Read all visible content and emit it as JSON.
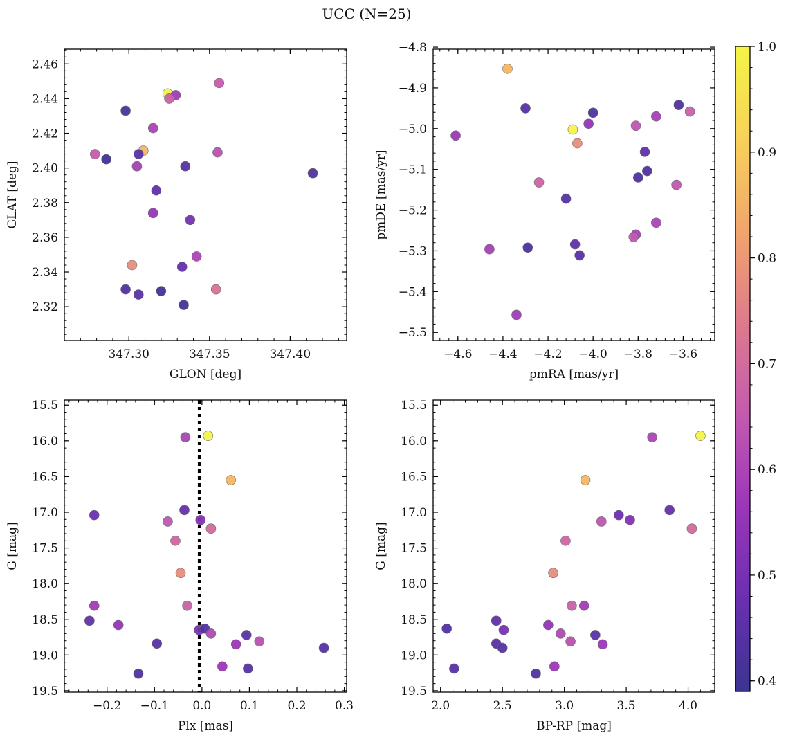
{
  "title": "UCC (N=25)",
  "colormap": {
    "name": "plasma",
    "range": [
      0.39,
      1.0
    ],
    "ticks": [
      0.4,
      0.5,
      0.6,
      0.7,
      0.8,
      0.9,
      1.0
    ],
    "tick_labels": [
      "0.4",
      "0.5",
      "0.6",
      "0.7",
      "0.8",
      "0.9",
      "1.0"
    ],
    "stops": [
      "#3a3491",
      "#6a2fb0",
      "#9a36b8",
      "#c35ab0",
      "#de7a8c",
      "#f1a56c",
      "#f7d25a",
      "#f4f446"
    ]
  },
  "chart_data": [
    {
      "type": "scatter",
      "name": "glon-glat",
      "xlabel": "GLON [deg]",
      "ylabel": "GLAT [deg]",
      "xlim": [
        347.26,
        347.435
      ],
      "ylim": [
        2.3005,
        2.4685
      ],
      "xticks": [
        347.3,
        347.35,
        347.4
      ],
      "xtick_labels": [
        "347.30",
        "347.35",
        "347.40"
      ],
      "yticks": [
        2.32,
        2.34,
        2.36,
        2.38,
        2.4,
        2.42,
        2.44,
        2.46
      ],
      "ytick_labels": [
        "2.32",
        "2.34",
        "2.36",
        "2.38",
        "2.40",
        "2.42",
        "2.44",
        "2.46"
      ],
      "points": [
        {
          "x": 347.324,
          "y": 2.443,
          "c": 1.0
        },
        {
          "x": 347.329,
          "y": 2.442,
          "c": 0.58
        },
        {
          "x": 347.325,
          "y": 2.44,
          "c": 0.67
        },
        {
          "x": 347.356,
          "y": 2.449,
          "c": 0.66
        },
        {
          "x": 347.298,
          "y": 2.433,
          "c": 0.42
        },
        {
          "x": 347.315,
          "y": 2.423,
          "c": 0.6
        },
        {
          "x": 347.309,
          "y": 2.41,
          "c": 0.86
        },
        {
          "x": 347.306,
          "y": 2.408,
          "c": 0.44
        },
        {
          "x": 347.279,
          "y": 2.408,
          "c": 0.66
        },
        {
          "x": 347.286,
          "y": 2.405,
          "c": 0.4
        },
        {
          "x": 347.355,
          "y": 2.409,
          "c": 0.63
        },
        {
          "x": 347.305,
          "y": 2.401,
          "c": 0.59
        },
        {
          "x": 347.335,
          "y": 2.401,
          "c": 0.44
        },
        {
          "x": 347.414,
          "y": 2.397,
          "c": 0.43
        },
        {
          "x": 347.317,
          "y": 2.387,
          "c": 0.46
        },
        {
          "x": 347.315,
          "y": 2.374,
          "c": 0.56
        },
        {
          "x": 347.338,
          "y": 2.37,
          "c": 0.5
        },
        {
          "x": 347.342,
          "y": 2.349,
          "c": 0.6
        },
        {
          "x": 347.302,
          "y": 2.344,
          "c": 0.78
        },
        {
          "x": 347.333,
          "y": 2.343,
          "c": 0.47
        },
        {
          "x": 347.298,
          "y": 2.33,
          "c": 0.43
        },
        {
          "x": 347.354,
          "y": 2.33,
          "c": 0.72
        },
        {
          "x": 347.306,
          "y": 2.327,
          "c": 0.45
        },
        {
          "x": 347.32,
          "y": 2.329,
          "c": 0.41
        },
        {
          "x": 347.334,
          "y": 2.321,
          "c": 0.41
        }
      ]
    },
    {
      "type": "scatter",
      "name": "pmra-pmde",
      "xlabel": "pmRA [mas/yr]",
      "ylabel": "pmDE [mas/yr]",
      "xlim": [
        -4.71,
        -3.46
      ],
      "ylim": [
        -5.52,
        -4.805
      ],
      "xticks": [
        -4.6,
        -4.4,
        -4.2,
        -4.0,
        -3.8,
        -3.6
      ],
      "xtick_labels": [
        "−4.6",
        "−4.4",
        "−4.2",
        "−4.0",
        "−3.8",
        "−3.6"
      ],
      "yticks": [
        -5.5,
        -5.4,
        -5.3,
        -5.2,
        -5.1,
        -5.0,
        -4.9,
        -4.8
      ],
      "ytick_labels": [
        "−5.5",
        "−5.4",
        "−5.3",
        "−5.2",
        "−5.1",
        "−5.0",
        "−4.9",
        "−4.8"
      ],
      "points": [
        {
          "x": -4.38,
          "y": -4.853,
          "c": 0.86
        },
        {
          "x": -4.3,
          "y": -4.95,
          "c": 0.44
        },
        {
          "x": -4.0,
          "y": -4.961,
          "c": 0.43
        },
        {
          "x": -3.62,
          "y": -4.942,
          "c": 0.43
        },
        {
          "x": -3.57,
          "y": -4.958,
          "c": 0.67
        },
        {
          "x": -3.72,
          "y": -4.97,
          "c": 0.59
        },
        {
          "x": -4.02,
          "y": -4.988,
          "c": 0.55
        },
        {
          "x": -3.81,
          "y": -4.993,
          "c": 0.64
        },
        {
          "x": -4.09,
          "y": -5.002,
          "c": 1.0
        },
        {
          "x": -4.61,
          "y": -5.017,
          "c": 0.57
        },
        {
          "x": -4.07,
          "y": -5.036,
          "c": 0.78
        },
        {
          "x": -3.77,
          "y": -5.057,
          "c": 0.46
        },
        {
          "x": -3.76,
          "y": -5.104,
          "c": 0.43
        },
        {
          "x": -3.8,
          "y": -5.12,
          "c": 0.43
        },
        {
          "x": -4.24,
          "y": -5.132,
          "c": 0.68
        },
        {
          "x": -3.63,
          "y": -5.138,
          "c": 0.65
        },
        {
          "x": -4.12,
          "y": -5.172,
          "c": 0.44
        },
        {
          "x": -3.72,
          "y": -5.231,
          "c": 0.6
        },
        {
          "x": -3.81,
          "y": -5.26,
          "c": 0.59
        },
        {
          "x": -3.82,
          "y": -5.266,
          "c": 0.65
        },
        {
          "x": -4.08,
          "y": -5.284,
          "c": 0.46
        },
        {
          "x": -4.29,
          "y": -5.292,
          "c": 0.42
        },
        {
          "x": -4.46,
          "y": -5.296,
          "c": 0.59
        },
        {
          "x": -4.06,
          "y": -5.311,
          "c": 0.45
        },
        {
          "x": -4.34,
          "y": -5.457,
          "c": 0.58
        }
      ]
    },
    {
      "type": "scatter",
      "name": "plx-g",
      "xlabel": "Plx [mas]",
      "ylabel": "G [mag]",
      "xlim": [
        -0.29,
        0.305
      ],
      "ylim": [
        19.52,
        15.43
      ],
      "y_inverted": true,
      "xticks": [
        -0.2,
        -0.1,
        0.0,
        0.1,
        0.2,
        0.3
      ],
      "xtick_labels": [
        "−0.2",
        "−0.1",
        "0.0",
        "0.1",
        "0.2",
        "0.3"
      ],
      "yticks": [
        15.5,
        16.0,
        16.5,
        17.0,
        17.5,
        18.0,
        18.5,
        19.0,
        19.5
      ],
      "ytick_labels": [
        "15.5",
        "16.0",
        "16.5",
        "17.0",
        "17.5",
        "18.0",
        "18.5",
        "19.0",
        "19.5"
      ],
      "vline": -0.005,
      "points": [
        {
          "x": 0.013,
          "y": 15.93,
          "c": 1.0
        },
        {
          "x": -0.035,
          "y": 15.95,
          "c": 0.6
        },
        {
          "x": 0.061,
          "y": 16.55,
          "c": 0.86
        },
        {
          "x": -0.227,
          "y": 17.04,
          "c": 0.48
        },
        {
          "x": -0.037,
          "y": 16.97,
          "c": 0.47
        },
        {
          "x": -0.003,
          "y": 17.11,
          "c": 0.52
        },
        {
          "x": -0.072,
          "y": 17.13,
          "c": 0.64
        },
        {
          "x": 0.019,
          "y": 17.23,
          "c": 0.7
        },
        {
          "x": -0.056,
          "y": 17.4,
          "c": 0.68
        },
        {
          "x": -0.045,
          "y": 17.85,
          "c": 0.78
        },
        {
          "x": -0.227,
          "y": 18.31,
          "c": 0.58
        },
        {
          "x": -0.031,
          "y": 18.31,
          "c": 0.67
        },
        {
          "x": -0.237,
          "y": 18.52,
          "c": 0.46
        },
        {
          "x": -0.176,
          "y": 18.58,
          "c": 0.55
        },
        {
          "x": -0.006,
          "y": 18.65,
          "c": 0.5
        },
        {
          "x": 0.006,
          "y": 18.63,
          "c": 0.43
        },
        {
          "x": 0.019,
          "y": 18.7,
          "c": 0.61
        },
        {
          "x": 0.094,
          "y": 18.72,
          "c": 0.45
        },
        {
          "x": 0.121,
          "y": 18.81,
          "c": 0.63
        },
        {
          "x": -0.095,
          "y": 18.84,
          "c": 0.44
        },
        {
          "x": 0.072,
          "y": 18.85,
          "c": 0.57
        },
        {
          "x": 0.257,
          "y": 18.9,
          "c": 0.44
        },
        {
          "x": 0.043,
          "y": 19.16,
          "c": 0.57
        },
        {
          "x": 0.097,
          "y": 19.19,
          "c": 0.44
        },
        {
          "x": -0.134,
          "y": 19.26,
          "c": 0.43
        }
      ]
    },
    {
      "type": "scatter",
      "name": "bprp-g",
      "xlabel": "BP-RP [mag]",
      "ylabel": "G [mag]",
      "xlim": [
        1.94,
        4.215
      ],
      "ylim": [
        19.52,
        15.43
      ],
      "y_inverted": true,
      "xticks": [
        2.0,
        2.5,
        3.0,
        3.5,
        4.0
      ],
      "xtick_labels": [
        "2.0",
        "2.5",
        "3.0",
        "3.5",
        "4.0"
      ],
      "yticks": [
        15.5,
        16.0,
        16.5,
        17.0,
        17.5,
        18.0,
        18.5,
        19.0,
        19.5
      ],
      "ytick_labels": [
        "15.5",
        "16.0",
        "16.5",
        "17.0",
        "17.5",
        "18.0",
        "18.5",
        "19.0",
        "19.5"
      ],
      "points": [
        {
          "x": 4.1,
          "y": 15.93,
          "c": 1.0
        },
        {
          "x": 3.71,
          "y": 15.95,
          "c": 0.6
        },
        {
          "x": 3.17,
          "y": 16.55,
          "c": 0.86
        },
        {
          "x": 3.85,
          "y": 16.97,
          "c": 0.47
        },
        {
          "x": 3.44,
          "y": 17.04,
          "c": 0.48
        },
        {
          "x": 3.53,
          "y": 17.11,
          "c": 0.52
        },
        {
          "x": 3.3,
          "y": 17.13,
          "c": 0.64
        },
        {
          "x": 4.03,
          "y": 17.23,
          "c": 0.7
        },
        {
          "x": 3.01,
          "y": 17.4,
          "c": 0.68
        },
        {
          "x": 2.91,
          "y": 17.85,
          "c": 0.78
        },
        {
          "x": 3.06,
          "y": 18.31,
          "c": 0.67
        },
        {
          "x": 3.16,
          "y": 18.31,
          "c": 0.58
        },
        {
          "x": 2.45,
          "y": 18.52,
          "c": 0.46
        },
        {
          "x": 2.87,
          "y": 18.58,
          "c": 0.55
        },
        {
          "x": 2.05,
          "y": 18.63,
          "c": 0.43
        },
        {
          "x": 2.51,
          "y": 18.65,
          "c": 0.5
        },
        {
          "x": 2.97,
          "y": 18.7,
          "c": 0.61
        },
        {
          "x": 3.25,
          "y": 18.72,
          "c": 0.45
        },
        {
          "x": 3.05,
          "y": 18.81,
          "c": 0.63
        },
        {
          "x": 2.45,
          "y": 18.84,
          "c": 0.44
        },
        {
          "x": 3.31,
          "y": 18.85,
          "c": 0.57
        },
        {
          "x": 2.5,
          "y": 18.9,
          "c": 0.44
        },
        {
          "x": 2.92,
          "y": 19.16,
          "c": 0.57
        },
        {
          "x": 2.11,
          "y": 19.19,
          "c": 0.44
        },
        {
          "x": 2.77,
          "y": 19.26,
          "c": 0.43
        }
      ]
    }
  ]
}
